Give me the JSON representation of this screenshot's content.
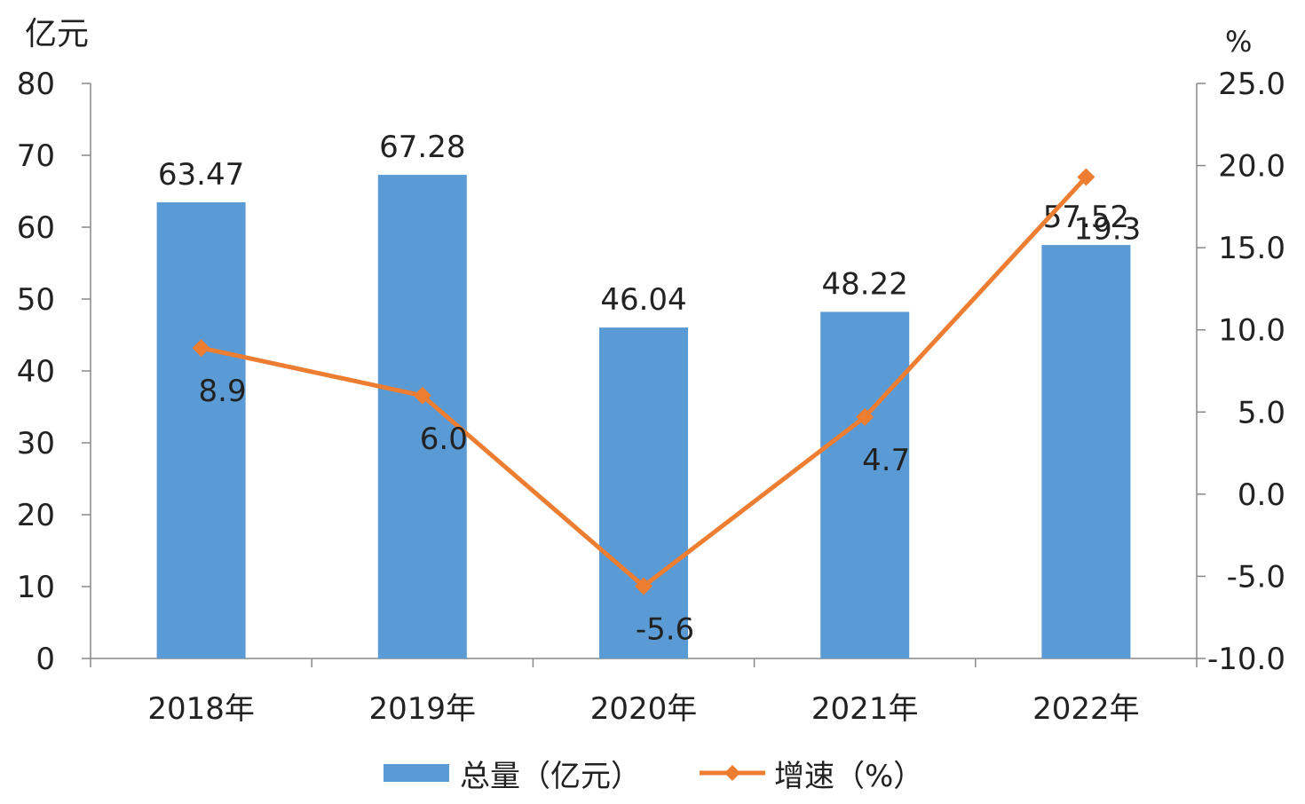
{
  "chart_data": {
    "type": "bar",
    "categories": [
      "2018年",
      "2019年",
      "2020年",
      "2021年",
      "2022年"
    ],
    "series": [
      {
        "name": "总量（亿元）",
        "type": "bar",
        "axis": "left",
        "color": "#5b9bd5",
        "values": [
          63.47,
          67.28,
          46.04,
          48.22,
          57.52
        ],
        "labels": [
          "63.47",
          "67.28",
          "46.04",
          "48.22",
          "57.52"
        ]
      },
      {
        "name": "增速（%）",
        "type": "line",
        "axis": "right",
        "color": "#ed7d31",
        "marker": "diamond",
        "values": [
          8.9,
          6.0,
          -5.6,
          4.7,
          19.3
        ],
        "labels": [
          "8.9",
          "6.0",
          "-5.6",
          "4.7",
          "19.3"
        ]
      }
    ],
    "y_left": {
      "unit": "亿元",
      "ylim": [
        0,
        80
      ],
      "ticks": [
        "0",
        "10",
        "20",
        "30",
        "40",
        "50",
        "60",
        "70",
        "80"
      ]
    },
    "y_right": {
      "unit": "%",
      "ylim": [
        -10,
        25
      ],
      "ticks": [
        "-10.0",
        "-5.0",
        "0.0",
        "5.0",
        "10.0",
        "15.0",
        "20.0",
        "25.0"
      ]
    },
    "grid": false,
    "legend_position": "bottom"
  }
}
